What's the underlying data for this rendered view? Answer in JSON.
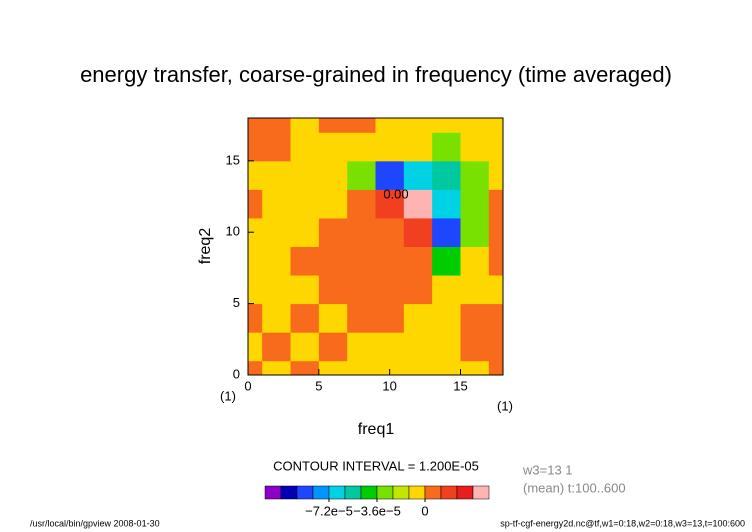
{
  "chart_data": {
    "type": "contour",
    "title": "energy transfer, coarse-grained in frequency (time averaged)",
    "x_label": "freq1",
    "y_label": "freq2",
    "x_unit": "(1)",
    "y_unit": "(1)",
    "xlim": [
      0,
      18
    ],
    "ylim": [
      0,
      18
    ],
    "xticks": [
      0,
      5,
      10,
      15
    ],
    "yticks": [
      0,
      5,
      10,
      15
    ],
    "x": [
      0,
      2,
      4,
      6,
      8,
      10,
      12,
      14,
      16,
      18
    ],
    "y": [
      0,
      2,
      4,
      6,
      8,
      10,
      12,
      14,
      16,
      18
    ],
    "z": [
      [
        6e-06,
        -5e-06,
        6e-06,
        -5e-06,
        -5e-06,
        -5e-06,
        -5e-06,
        -5e-06,
        -5e-06,
        6e-06
      ],
      [
        -5e-06,
        6e-06,
        -5e-06,
        6e-06,
        -5e-06,
        -5e-06,
        -5e-06,
        -5e-06,
        6e-06,
        6e-06
      ],
      [
        6e-06,
        -5e-06,
        6e-06,
        -5e-06,
        6e-06,
        6e-06,
        -5e-06,
        -5e-06,
        6e-06,
        6e-06
      ],
      [
        -5e-06,
        -5e-06,
        -5e-06,
        6e-06,
        6e-06,
        6e-06,
        6e-06,
        -5e-06,
        -5e-06,
        -5e-06
      ],
      [
        -5e-06,
        -5e-06,
        6e-06,
        6e-06,
        6e-06,
        6e-06,
        6e-06,
        -4e-05,
        -5e-06,
        6e-06
      ],
      [
        -5e-06,
        -5e-06,
        -5e-06,
        6e-06,
        6e-06,
        6e-06,
        1.8e-05,
        -9e-05,
        -3e-05,
        6e-06
      ],
      [
        6e-06,
        -5e-06,
        -5e-06,
        -5e-06,
        6e-06,
        1.8e-05,
        4e-05,
        -7e-05,
        -3e-05,
        6e-06
      ],
      [
        -5e-06,
        -5e-06,
        -5e-06,
        -5e-06,
        -3e-05,
        -9e-05,
        -6e-05,
        -5e-05,
        -3e-05,
        -5e-06
      ],
      [
        6e-06,
        6e-06,
        -5e-06,
        -5e-06,
        -5e-06,
        -5e-06,
        -5e-06,
        -3e-05,
        -5e-06,
        -5e-06
      ],
      [
        6e-06,
        6e-06,
        -5e-06,
        6e-06,
        6e-06,
        -5e-06,
        -5e-06,
        -5e-06,
        -5e-06,
        -5e-06
      ]
    ],
    "contour_label": "0.00",
    "contour_interval": "CONTOUR INTERVAL = 1.200E-05",
    "colorbar": {
      "levels": [
        -0.000108,
        -9.6e-05,
        -8.4e-05,
        -7.2e-05,
        -6e-05,
        -4.8e-05,
        -3.6e-05,
        -2.4e-05,
        -1.2e-05,
        0,
        1.2e-05,
        2.4e-05,
        3.6e-05
      ],
      "colors": [
        "#8c00c8",
        "#0000b4",
        "#1e46ff",
        "#0096ff",
        "#00d2e6",
        "#00c8a0",
        "#00cd00",
        "#78e100",
        "#c3e600",
        "#ffd700",
        "#f86a1c",
        "#f04020",
        "#e81e1e",
        "#ffb4b4"
      ],
      "ticks": [
        {
          "value": -7.2e-05,
          "label": "−7.2e−5"
        },
        {
          "value": -3.6e-05,
          "label": "−3.6e−5"
        },
        0
      ]
    },
    "info": [
      "w3=13 1",
      "(mean) t:100..600"
    ],
    "footer_left": "/usr/local/bin/gpview  2008-01-30",
    "footer_right": "sp-tf-cgf-energy2d.nc@tf,w1=0:18,w2=0:18,w3=13,t=100:600"
  }
}
